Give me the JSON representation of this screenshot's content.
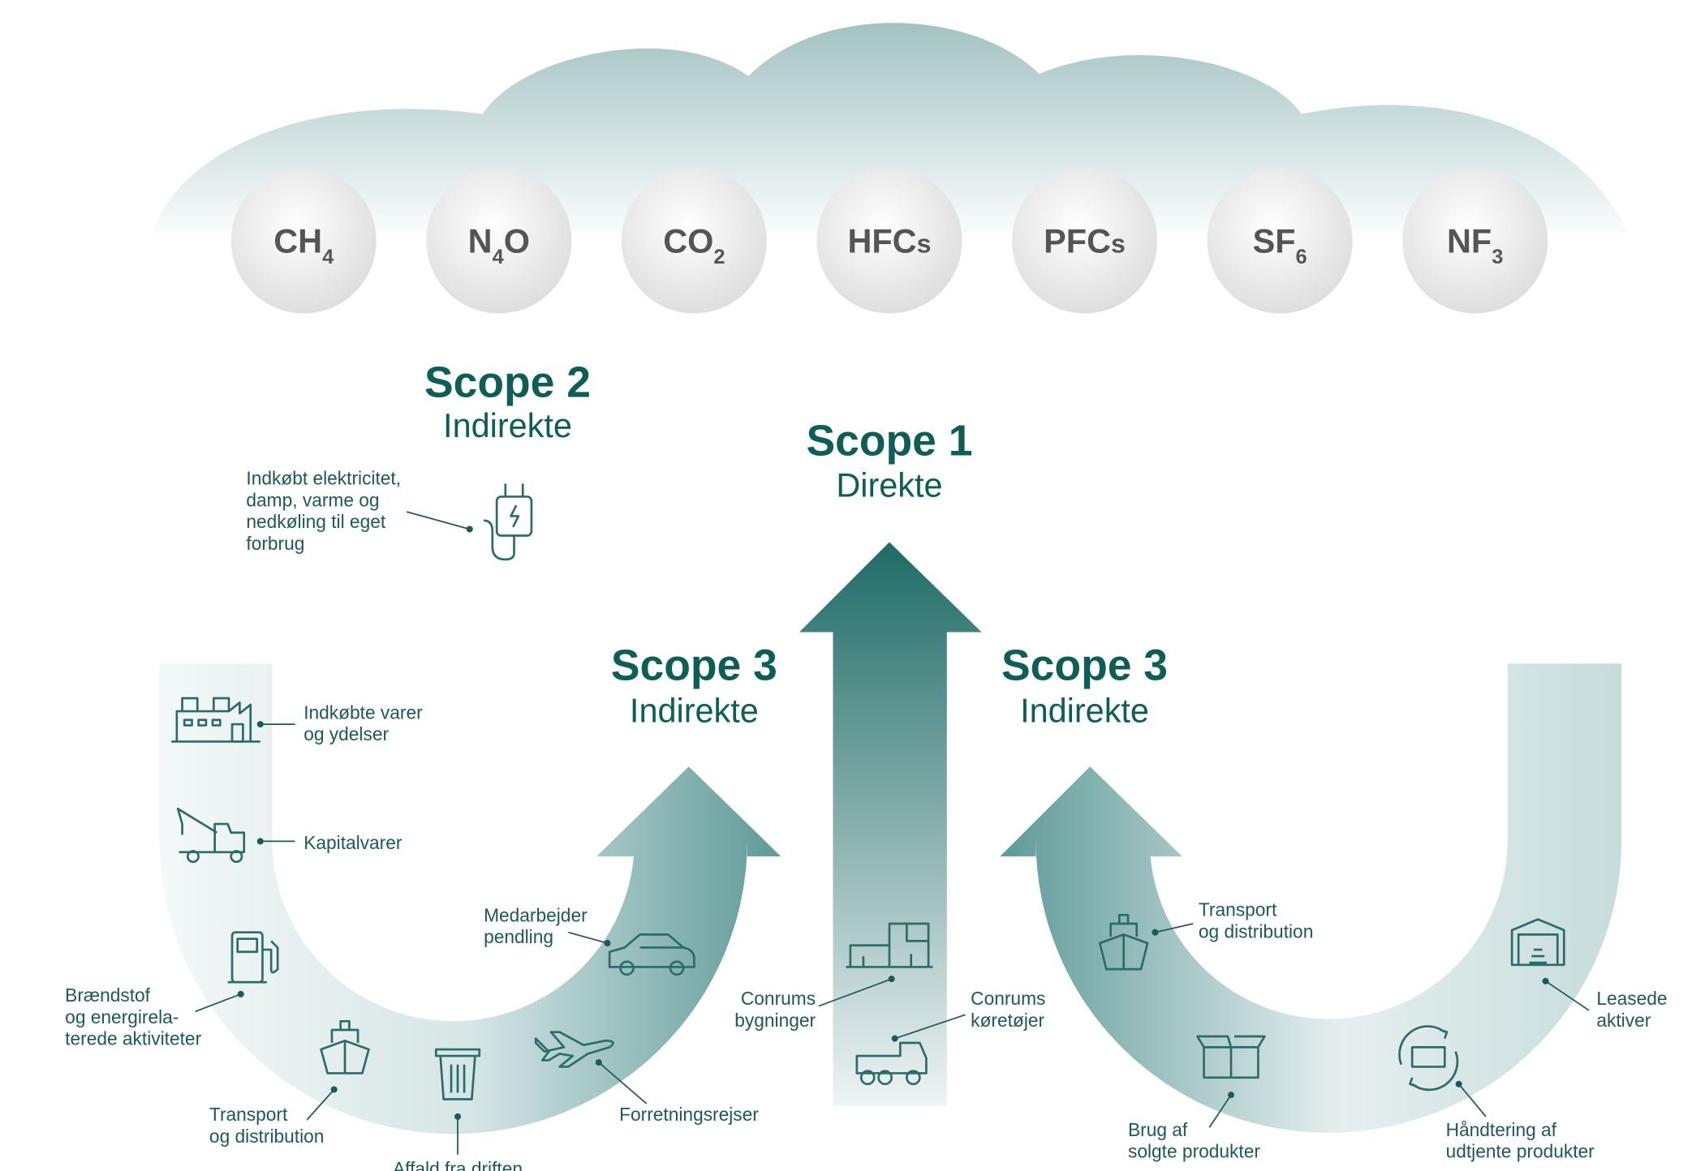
{
  "gases": [
    {
      "base": "CH",
      "sub": "4"
    },
    {
      "base": "N",
      "sub": "4",
      "tail": "O"
    },
    {
      "base": "CO",
      "sub": "2"
    },
    {
      "base": "HFC",
      "small": "s"
    },
    {
      "base": "PFC",
      "small": "s"
    },
    {
      "base": "SF",
      "sub": "6"
    },
    {
      "base": "NF",
      "sub": "3"
    }
  ],
  "scope2": {
    "title": "Scope 2",
    "subtitle": "Indirekte",
    "items": [
      {
        "lines": [
          "Indkøbt elektricitet,",
          "damp, varme og",
          "nedkøling til eget",
          "forbrug"
        ]
      }
    ]
  },
  "scope1": {
    "title": "Scope 1",
    "subtitle": "Direkte",
    "items": [
      {
        "lines": [
          "Conrums",
          "bygninger"
        ]
      },
      {
        "lines": [
          "Conrums",
          "køretøjer"
        ]
      }
    ]
  },
  "scope3_upstream": {
    "title": "Scope 3",
    "subtitle": "Indirekte",
    "items": [
      {
        "lines": [
          "Indkøbte varer",
          "og ydelser"
        ]
      },
      {
        "lines": [
          "Kapitalvarer"
        ]
      },
      {
        "lines": [
          "Brændstof",
          "og energirela-",
          "terede aktiviteter"
        ]
      },
      {
        "lines": [
          "Transport",
          "og distribution"
        ]
      },
      {
        "lines": [
          "Affald fra driften"
        ]
      },
      {
        "lines": [
          "Forretningsrejser"
        ]
      },
      {
        "lines": [
          "Medarbejder",
          "pendling"
        ]
      }
    ]
  },
  "scope3_downstream": {
    "title": "Scope 3",
    "subtitle": "Indirekte",
    "items": [
      {
        "lines": [
          "Transport",
          "og distribution"
        ]
      },
      {
        "lines": [
          "Brug af",
          "solgte produkter"
        ]
      },
      {
        "lines": [
          "Håndtering af",
          "udtjente produkter"
        ]
      },
      {
        "lines": [
          "Leasede",
          "aktiver"
        ]
      }
    ]
  }
}
